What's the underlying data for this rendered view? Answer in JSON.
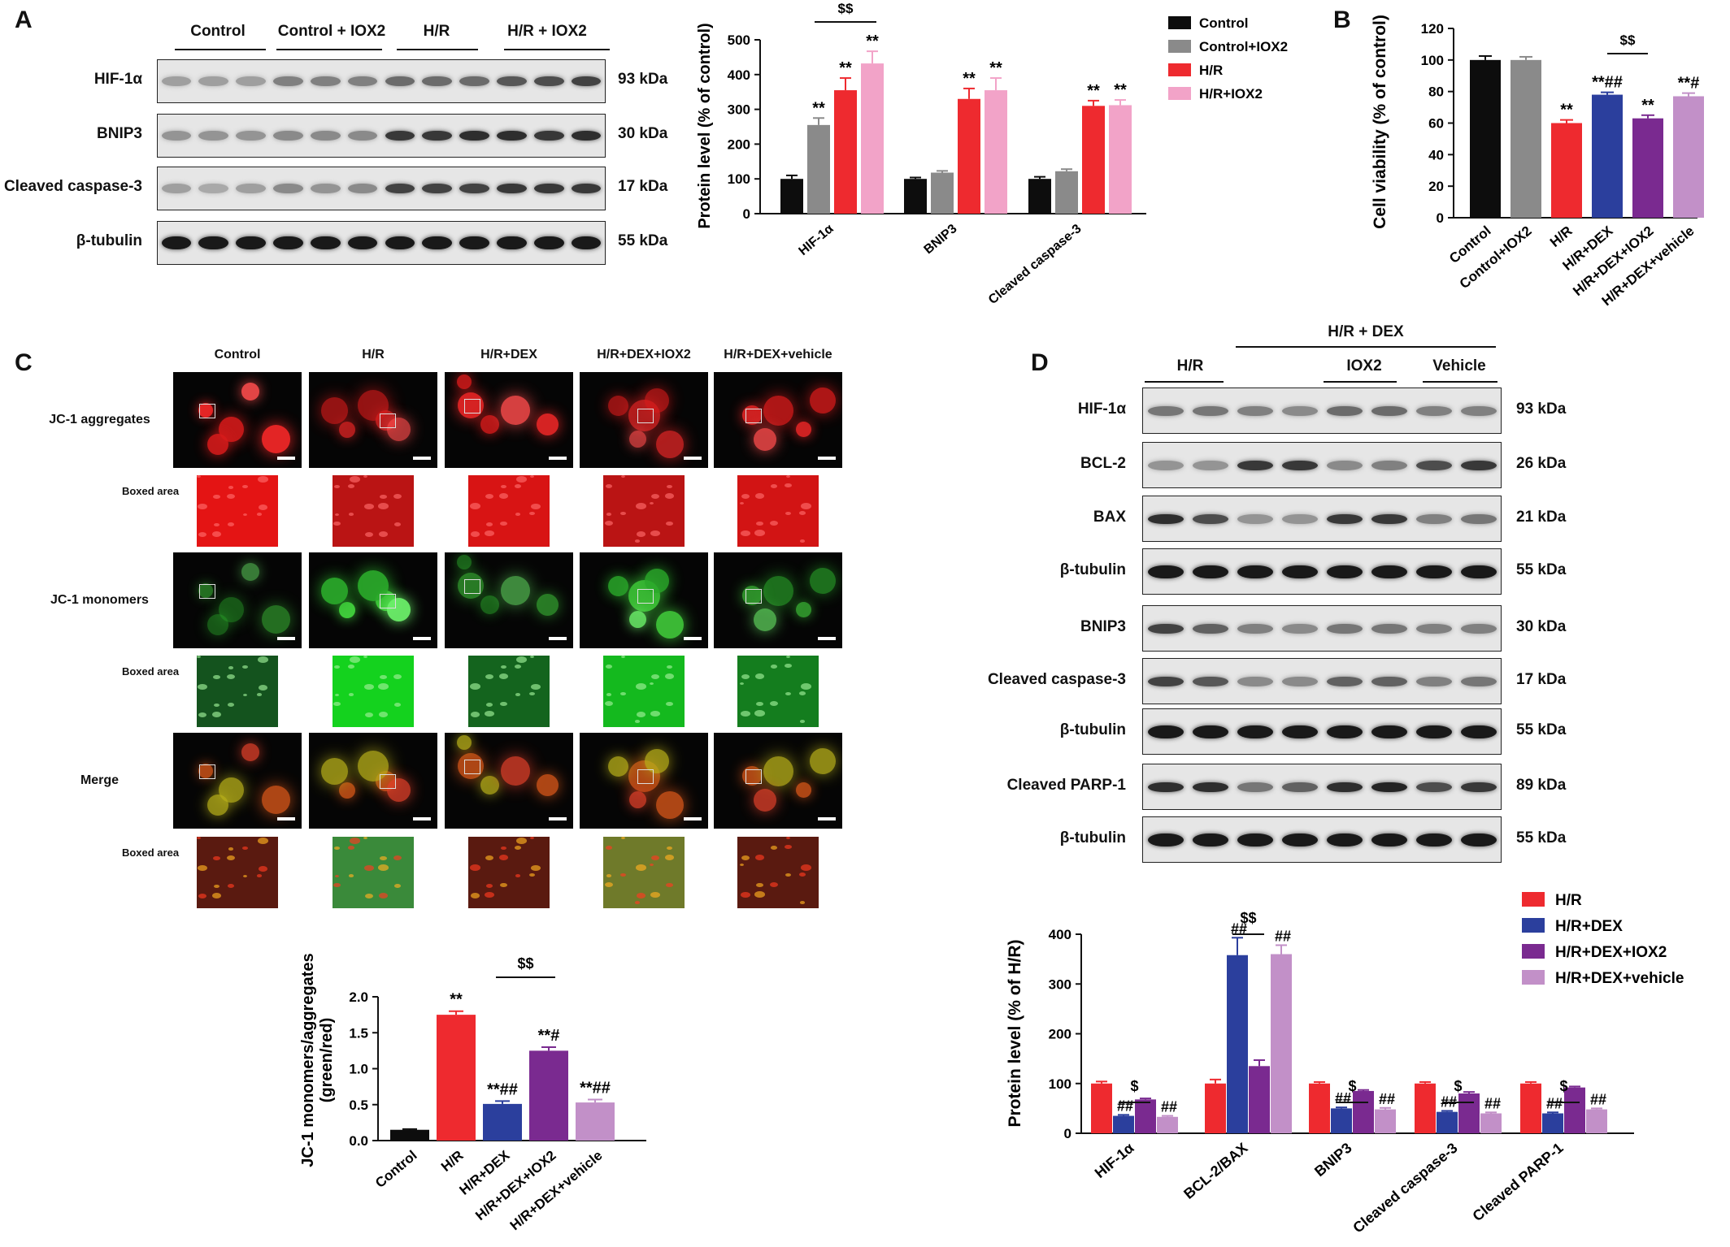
{
  "panels": {
    "a": "A",
    "b": "B",
    "c": "C",
    "d": "D"
  },
  "colors": {
    "black": "#0d0d0d",
    "gray": "#8a8a8a",
    "red": "#ee2a2f",
    "pink": "#f2a3c8",
    "blue": "#2b3f9d",
    "purple": "#7a2a90",
    "lilac": "#c290c8"
  },
  "panel_a": {
    "groups": [
      "Control",
      "Control + IOX2",
      "H/R",
      "H/R + IOX2"
    ],
    "blots": [
      {
        "label": "HIF-1α",
        "kda": "93 kDa",
        "intensity": [
          0.3,
          0.3,
          0.3,
          0.45,
          0.45,
          0.45,
          0.55,
          0.55,
          0.55,
          0.65,
          0.7,
          0.75
        ]
      },
      {
        "label": "BNIP3",
        "kda": "30 kDa",
        "intensity": [
          0.35,
          0.35,
          0.35,
          0.4,
          0.4,
          0.4,
          0.8,
          0.8,
          0.85,
          0.85,
          0.8,
          0.85
        ]
      },
      {
        "label": "Cleaved caspase-3",
        "kda": "17 kDa",
        "intensity": [
          0.3,
          0.25,
          0.3,
          0.4,
          0.35,
          0.4,
          0.75,
          0.75,
          0.75,
          0.8,
          0.8,
          0.8
        ]
      },
      {
        "label": "β-tubulin",
        "kda": "55 kDa",
        "intensity": [
          0.95,
          0.95,
          0.95,
          0.95,
          0.95,
          0.95,
          0.95,
          0.95,
          0.95,
          0.95,
          0.95,
          0.95
        ]
      }
    ]
  },
  "chart_a": {
    "type": "bar",
    "ylabel": "Protein level (% of control)",
    "ylim": [
      0,
      500
    ],
    "yticks": [
      0,
      100,
      200,
      300,
      400,
      500
    ],
    "categories": [
      "HIF-1α",
      "BNIP3",
      "Cleaved caspase-3"
    ],
    "series": [
      {
        "name": "Control",
        "color": "#0d0d0d",
        "values": [
          100,
          100,
          100
        ],
        "err": [
          10,
          4,
          6
        ],
        "labels": [
          "",
          "",
          ""
        ]
      },
      {
        "name": "Control+IOX2",
        "color": "#8a8a8a",
        "values": [
          255,
          118,
          122
        ],
        "err": [
          20,
          5,
          6
        ],
        "labels": [
          "**",
          "",
          ""
        ]
      },
      {
        "name": "H/R",
        "color": "#ee2a2f",
        "values": [
          355,
          330,
          310
        ],
        "err": [
          35,
          30,
          15
        ],
        "labels": [
          "**",
          "**",
          "**"
        ]
      },
      {
        "name": "H/R+IOX2",
        "color": "#f2a3c8",
        "values": [
          432,
          355,
          312
        ],
        "err": [
          35,
          35,
          15
        ],
        "labels": [
          "**",
          "**",
          "**"
        ]
      }
    ],
    "bracket": {
      "label": "$$"
    }
  },
  "chart_b": {
    "type": "bar",
    "ylabel": "Cell viability (% of control)",
    "ylim": [
      0,
      120
    ],
    "yticks": [
      0,
      20,
      40,
      60,
      80,
      100,
      120
    ],
    "categories": [
      "Control",
      "Control+IOX2",
      "H/R",
      "H/R+DEX",
      "H/R+DEX+IOX2",
      "H/R+DEX+vehicle"
    ],
    "values": [
      100,
      100,
      60,
      78,
      63,
      77
    ],
    "err": [
      2.5,
      2,
      2,
      1.5,
      2,
      2
    ],
    "colors": [
      "#0d0d0d",
      "#8a8a8a",
      "#ee2a2f",
      "#2b3f9d",
      "#7a2a90",
      "#c290c8"
    ],
    "labels": [
      "",
      "",
      "**",
      "**##",
      "**",
      "**#"
    ],
    "bracket": {
      "label": "$$"
    }
  },
  "panel_c": {
    "columns": [
      "Control",
      "H/R",
      "H/R+DEX",
      "H/R+DEX+IOX2",
      "H/R+DEX+vehicle"
    ],
    "rows": [
      {
        "label": "JC-1 aggregates",
        "boxed": "Boxed area",
        "kind": "red"
      },
      {
        "label": "JC-1 monomers",
        "boxed": "Boxed area",
        "kind": "green"
      },
      {
        "label": "Merge",
        "boxed": "Boxed area",
        "kind": "merge"
      }
    ]
  },
  "chart_c": {
    "type": "bar",
    "ylabel_line1": "JC-1 monomers/aggregates",
    "ylabel_line2": "(green/red)",
    "ylim": [
      0,
      2.0
    ],
    "yticks": [
      "0.0",
      "0.5",
      "1.0",
      "1.5",
      "2.0"
    ],
    "categories": [
      "Control",
      "H/R",
      "H/R+DEX",
      "H/R+DEX+IOX2",
      "H/R+DEX+vehicle"
    ],
    "values": [
      0.15,
      1.75,
      0.51,
      1.25,
      0.53
    ],
    "err": [
      0.01,
      0.05,
      0.04,
      0.05,
      0.04
    ],
    "colors": [
      "#0d0d0d",
      "#ee2a2f",
      "#2b3f9d",
      "#7a2a90",
      "#c290c8"
    ],
    "labels": [
      "",
      "**",
      "**##",
      "**#",
      "**##"
    ],
    "bracket": {
      "label": "$$"
    }
  },
  "panel_d": {
    "header": "H/R + DEX",
    "groups": [
      "H/R",
      "IOX2",
      "Vehicle"
    ],
    "blots": [
      {
        "label": "HIF-1α",
        "kda": "93 kDa",
        "intensity": [
          0.5,
          0.5,
          0.45,
          0.4,
          0.55,
          0.55,
          0.45,
          0.45
        ]
      },
      {
        "label": "BCL-2",
        "kda": "26 kDa",
        "intensity": [
          0.35,
          0.35,
          0.8,
          0.8,
          0.4,
          0.45,
          0.7,
          0.8
        ]
      },
      {
        "label": "BAX",
        "kda": "21 kDa",
        "intensity": [
          0.85,
          0.7,
          0.35,
          0.35,
          0.8,
          0.8,
          0.45,
          0.5
        ]
      },
      {
        "label": "β-tubulin",
        "kda": "55 kDa",
        "intensity": [
          0.95,
          0.95,
          0.95,
          0.95,
          0.95,
          0.95,
          0.95,
          0.95
        ]
      },
      {
        "label": "BNIP3",
        "kda": "30 kDa",
        "intensity": [
          0.75,
          0.6,
          0.45,
          0.4,
          0.5,
          0.5,
          0.45,
          0.45
        ]
      },
      {
        "label": "Cleaved caspase-3",
        "kda": "17 kDa",
        "intensity": [
          0.75,
          0.65,
          0.4,
          0.4,
          0.6,
          0.6,
          0.45,
          0.5
        ]
      },
      {
        "label": "β-tubulin",
        "kda": "55 kDa",
        "intensity": [
          0.95,
          0.95,
          0.95,
          0.95,
          0.95,
          0.95,
          0.95,
          0.95
        ]
      },
      {
        "label": "Cleaved PARP-1",
        "kda": "89 kDa",
        "intensity": [
          0.85,
          0.85,
          0.5,
          0.6,
          0.85,
          0.9,
          0.7,
          0.8
        ]
      },
      {
        "label": "β-tubulin",
        "kda": "55 kDa",
        "intensity": [
          0.95,
          0.95,
          0.95,
          0.95,
          0.95,
          0.95,
          0.95,
          0.95
        ]
      }
    ]
  },
  "chart_d": {
    "type": "bar",
    "ylabel": "Protein level (% of H/R)",
    "ylim": [
      0,
      400
    ],
    "yticks": [
      0,
      100,
      200,
      300,
      400
    ],
    "categories": [
      "HIF-1α",
      "BCL-2/BAX",
      "BNIP3",
      "Cleaved caspase-3",
      "Cleaved PARP-1"
    ],
    "series": [
      {
        "name": "H/R",
        "color": "#ee2a2f",
        "values": [
          100,
          100,
          100,
          100,
          100
        ],
        "err": [
          4,
          8,
          3,
          3,
          3
        ],
        "labels": [
          "",
          "",
          "",
          "",
          ""
        ]
      },
      {
        "name": "H/R+DEX",
        "color": "#2b3f9d",
        "values": [
          35,
          358,
          50,
          43,
          40
        ],
        "err": [
          2,
          35,
          2,
          2,
          2
        ],
        "labels": [
          "##",
          "##",
          "##",
          "##",
          "##"
        ]
      },
      {
        "name": "H/R+DEX+IOX2",
        "color": "#7a2a90",
        "values": [
          68,
          135,
          85,
          80,
          92
        ],
        "err": [
          2,
          12,
          2,
          3,
          2
        ],
        "labels": [
          "",
          "",
          "",
          "",
          ""
        ]
      },
      {
        "name": "H/R+DEX+vehicle",
        "color": "#c290c8",
        "values": [
          33,
          360,
          48,
          40,
          48
        ],
        "err": [
          2,
          18,
          3,
          2,
          2
        ],
        "labels": [
          "##",
          "##",
          "##",
          "##",
          "##"
        ]
      }
    ],
    "brackets": [
      "$",
      "$$",
      "$",
      "$",
      "$"
    ]
  }
}
